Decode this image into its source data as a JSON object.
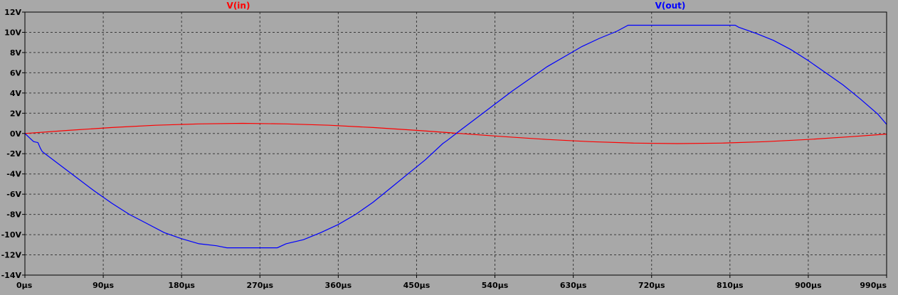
{
  "chart_data": {
    "type": "line",
    "title": "",
    "xlabel": "",
    "ylabel": "",
    "grid": true,
    "legend_placement": "top",
    "xlim": [
      0,
      990
    ],
    "ylim": [
      -14,
      12
    ],
    "x_unit": "µs",
    "y_unit": "V",
    "x_ticks": [
      0,
      90,
      180,
      270,
      360,
      450,
      540,
      630,
      720,
      810,
      900,
      990
    ],
    "y_ticks": [
      -14,
      -12,
      -10,
      -8,
      -6,
      -4,
      -2,
      0,
      2,
      4,
      6,
      8,
      10,
      12
    ],
    "x_tick_labels": [
      "0µs",
      "90µs",
      "180µs",
      "270µs",
      "360µs",
      "450µs",
      "540µs",
      "630µs",
      "720µs",
      "810µs",
      "900µs",
      "990µs"
    ],
    "y_tick_labels": [
      "-14V",
      "-12V",
      "-10V",
      "-8V",
      "-6V",
      "-4V",
      "-2V",
      "0V",
      "2V",
      "4V",
      "6V",
      "8V",
      "10V",
      "12V"
    ],
    "series": [
      {
        "name": "V(in)",
        "color": "#ff0000",
        "x": [
          0,
          50,
          100,
          150,
          200,
          250,
          300,
          350,
          400,
          450,
          500,
          550,
          600,
          650,
          700,
          750,
          800,
          850,
          900,
          950,
          990
        ],
        "y": [
          0,
          0.31,
          0.59,
          0.81,
          0.95,
          1.0,
          0.95,
          0.81,
          0.59,
          0.31,
          0,
          -0.31,
          -0.59,
          -0.81,
          -0.95,
          -1.0,
          -0.95,
          -0.81,
          -0.59,
          -0.31,
          -0.06
        ]
      },
      {
        "name": "V(out)",
        "color": "#0000ff",
        "x": [
          0,
          10,
          15,
          18,
          20,
          40,
          60,
          80,
          100,
          120,
          140,
          160,
          180,
          200,
          220,
          232,
          290,
          300,
          320,
          340,
          360,
          380,
          400,
          420,
          440,
          460,
          480,
          485,
          500,
          520,
          540,
          560,
          580,
          600,
          620,
          640,
          660,
          680,
          693,
          816,
          820,
          840,
          860,
          880,
          900,
          920,
          940,
          960,
          980,
          990
        ],
        "y": [
          0,
          -0.8,
          -0.9,
          -1.5,
          -1.8,
          -3.1,
          -4.4,
          -5.7,
          -6.9,
          -8.0,
          -8.9,
          -9.8,
          -10.4,
          -10.9,
          -11.1,
          -11.3,
          -11.3,
          -10.9,
          -10.5,
          -9.8,
          -9.0,
          -8.0,
          -6.8,
          -5.4,
          -4.0,
          -2.6,
          -1.0,
          -0.7,
          0.3,
          1.6,
          2.9,
          4.2,
          5.4,
          6.6,
          7.6,
          8.6,
          9.4,
          10.1,
          10.7,
          10.7,
          10.5,
          9.9,
          9.2,
          8.3,
          7.2,
          6.0,
          4.8,
          3.4,
          1.9,
          0.9
        ]
      }
    ]
  }
}
